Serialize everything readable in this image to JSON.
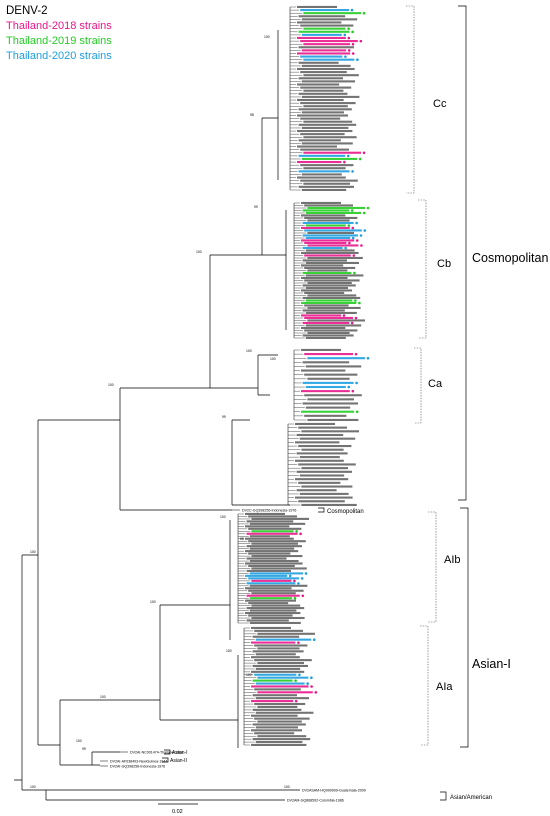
{
  "title": "DENV-2",
  "legend": [
    {
      "label": "Thailand-2018 strains",
      "color": "#e8178a"
    },
    {
      "label": "Thailand-2019 strains",
      "color": "#22cc22"
    },
    {
      "label": "Thailand-2020 strains",
      "color": "#1e9ee0"
    }
  ],
  "clades": {
    "cc": "Cc",
    "cb": "Cb",
    "ca": "Ca",
    "cosmopolitan": "Cosmopolitan",
    "cosmo_outgroup": "Cosmopolitan",
    "aib": "AIb",
    "aia": "AIa",
    "asian1": "Asian-I",
    "asian2": "Asian-II",
    "asian1_small": "Asian-I",
    "asian_american": "Asian/American"
  },
  "bootstrap": {
    "b1": "100",
    "b2": "100",
    "b3": "100",
    "b4": "98",
    "b5": "99",
    "b6": "100",
    "b7": "100",
    "b8": "100",
    "b9": "99",
    "b10": "100",
    "b11": "100",
    "b12": "100",
    "b13": "100",
    "b14": "99",
    "b15": "88",
    "b16": "100",
    "b17": "100",
    "b18": "100",
    "b19": "100"
  },
  "outgroups": [
    "DV2C-GQ398256-Indonesia-1976",
    "DV2AI-NC001474-Thailand-1964",
    "DV2AI-AF038403-NewGuinea-1944",
    "DV2AI-GQ398256-Indonesia-1976",
    "DV2ASAM-HQ999999-Guatemala-2009",
    "DV2AM-GQ868592-Colombia-1986"
  ],
  "scale": "0.02"
}
